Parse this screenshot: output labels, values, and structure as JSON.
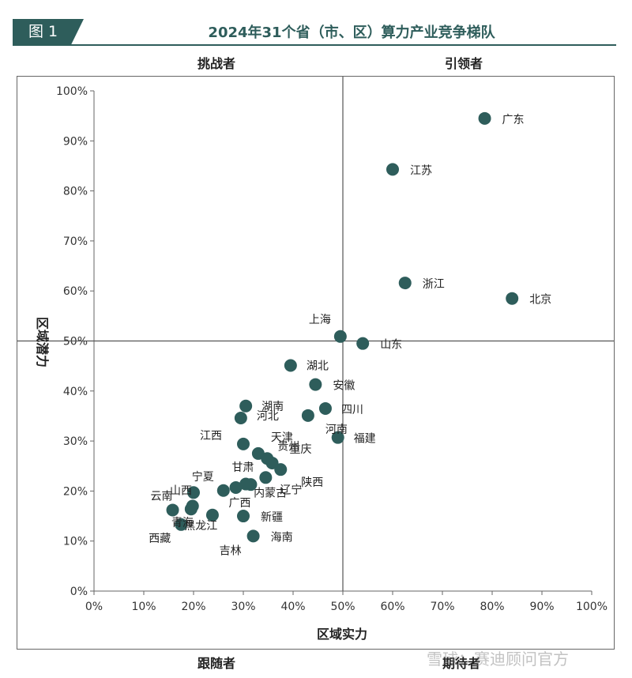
{
  "figure": {
    "badge": "图 1",
    "title": "2024年31个省（市、区）算力产业竞争梯队"
  },
  "quadrants": {
    "top_left": "挑战者",
    "top_right": "引领者",
    "bottom_left": "跟随者",
    "bottom_right": "期待者"
  },
  "watermark": "雪球：赛迪顾问官方",
  "colors": {
    "point": "#2e5d5b",
    "accent": "#2e5d5b"
  },
  "chart_data": {
    "type": "scatter",
    "xlabel": "区域实力",
    "ylabel": "区域潜力",
    "xlim": [
      0,
      100
    ],
    "ylim": [
      0,
      100
    ],
    "x_ticks": [
      "0%",
      "10%",
      "20%",
      "30%",
      "40%",
      "50%",
      "60%",
      "70%",
      "80%",
      "90%",
      "100%"
    ],
    "y_ticks": [
      "0%",
      "10%",
      "20%",
      "30%",
      "40%",
      "50%",
      "60%",
      "70%",
      "80%",
      "90%",
      "100%"
    ],
    "reference_lines": {
      "x": 50,
      "y": 50
    },
    "grid": false,
    "points": [
      {
        "label": "广东",
        "x": 78.5,
        "y": 94.5
      },
      {
        "label": "江苏",
        "x": 60,
        "y": 84.3
      },
      {
        "label": "浙江",
        "x": 62.5,
        "y": 61.6
      },
      {
        "label": "北京",
        "x": 84,
        "y": 58.5
      },
      {
        "label": "上海",
        "x": 49.5,
        "y": 50.9
      },
      {
        "label": "山东",
        "x": 54,
        "y": 49.5
      },
      {
        "label": "湖北",
        "x": 39.5,
        "y": 45.1
      },
      {
        "label": "安徽",
        "x": 44.5,
        "y": 41.3
      },
      {
        "label": "湖南",
        "x": 30.5,
        "y": 37
      },
      {
        "label": "河北",
        "x": 29.5,
        "y": 34.6
      },
      {
        "label": "四川",
        "x": 46.5,
        "y": 36.5
      },
      {
        "label": "河南",
        "x": 43,
        "y": 35.1
      },
      {
        "label": "福建",
        "x": 49,
        "y": 30.7
      },
      {
        "label": "江西",
        "x": 30,
        "y": 29.4
      },
      {
        "label": "天津",
        "x": 33,
        "y": 27.5
      },
      {
        "label": "贵州",
        "x": 34.8,
        "y": 26.5
      },
      {
        "label": "重庆",
        "x": 35.8,
        "y": 25.6
      },
      {
        "label": "陕西",
        "x": 37.5,
        "y": 24.3
      },
      {
        "label": "辽宁",
        "x": 34.5,
        "y": 22.7
      },
      {
        "label": "甘肃",
        "x": 31.5,
        "y": 21.3
      },
      {
        "label": "宁夏",
        "x": 26,
        "y": 20.1
      },
      {
        "label": "内蒙古",
        "x": 30.5,
        "y": 21.4
      },
      {
        "label": "广西",
        "x": 28.5,
        "y": 20.7
      },
      {
        "label": "山西",
        "x": 20,
        "y": 19.7
      },
      {
        "label": "云南",
        "x": 15.8,
        "y": 16.2
      },
      {
        "label": "",
        "x": 19.8,
        "y": 17
      },
      {
        "label": "",
        "x": 19.5,
        "y": 16.4
      },
      {
        "label": "青海",
        "x": 23.8,
        "y": 15.2
      },
      {
        "label": "新疆",
        "x": 30,
        "y": 15
      },
      {
        "label": "黑龙江",
        "x": 17.5,
        "y": 13.3
      },
      {
        "label": "海南",
        "x": 32,
        "y": 11
      },
      {
        "label": "西藏",
        "x": null,
        "y": null
      },
      {
        "label": "吉林",
        "x": null,
        "y": null
      }
    ]
  }
}
